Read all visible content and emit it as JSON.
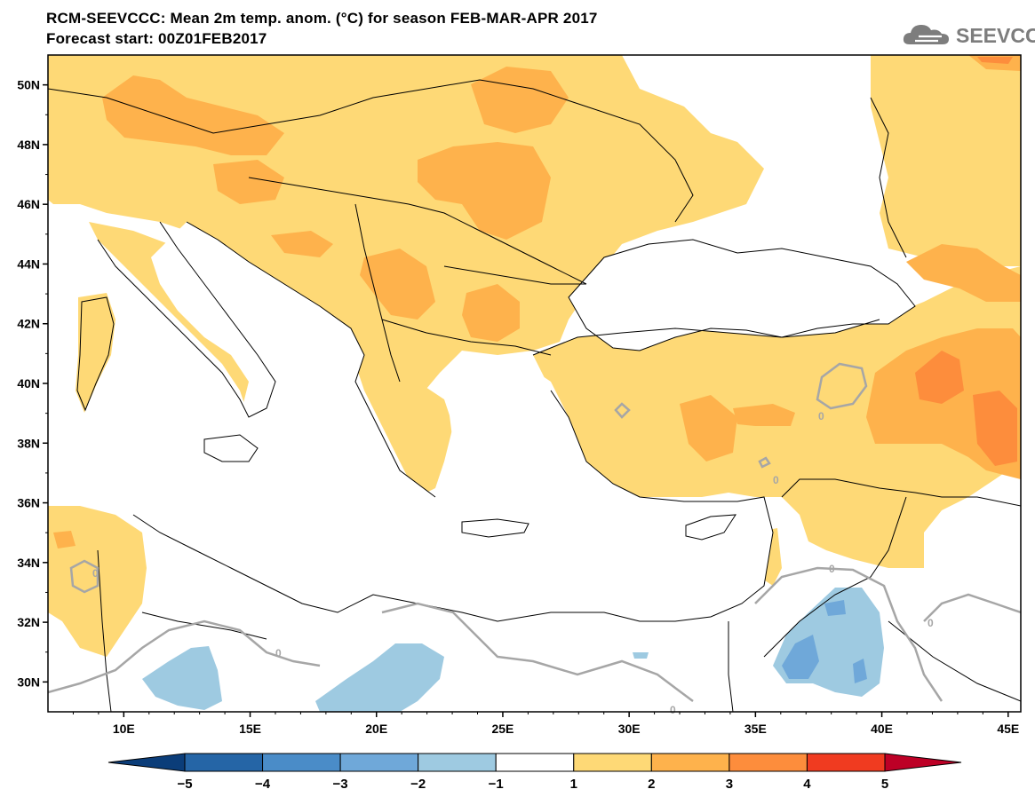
{
  "title": {
    "line1": "RCM-SEEVCCC: Mean 2m temp. anom. (°C) for season FEB-MAR-APR 2017",
    "line2": "Forecast start: 00Z01FEB2017"
  },
  "logo": {
    "text": "SEEVCCC",
    "icon": "cloud-logo-icon"
  },
  "map": {
    "lon_range": [
      7,
      45.5
    ],
    "lat_range": [
      29,
      51
    ],
    "lon_ticks": [
      "10E",
      "15E",
      "20E",
      "25E",
      "30E",
      "35E",
      "40E",
      "45E"
    ],
    "lat_ticks": [
      "50N",
      "48N",
      "46N",
      "44N",
      "42N",
      "40N",
      "38N",
      "36N",
      "34N",
      "32N",
      "30N"
    ],
    "contour_labels": [
      "0",
      "0",
      "0",
      "0",
      "0",
      "0",
      "0"
    ]
  },
  "colorbar": {
    "labels": [
      "-5",
      "-4",
      "-3",
      "-2",
      "-1",
      "1",
      "2",
      "3",
      "4",
      "5"
    ],
    "colors": [
      "#0b3d79",
      "#2565a6",
      "#4a8cc8",
      "#6fa8d9",
      "#9ecae1",
      "#ffffff",
      "#fed976",
      "#feb24c",
      "#fd8d3c",
      "#f03b20",
      "#bd0026"
    ]
  }
}
